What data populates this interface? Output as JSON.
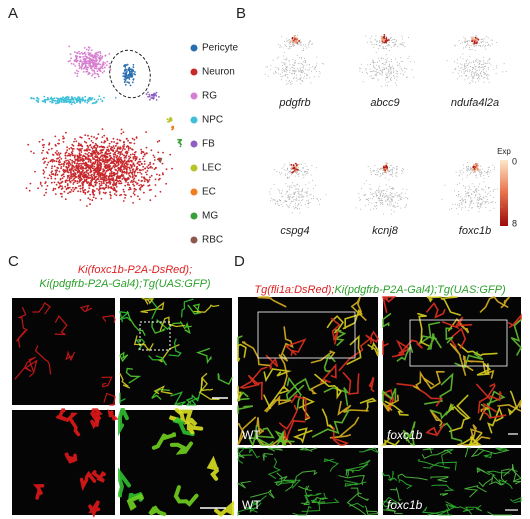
{
  "panels": {
    "A": {
      "label": "A",
      "legend": [
        {
          "name": "Pericyte",
          "color": "#2a6fb0"
        },
        {
          "name": "Neuron",
          "color": "#c8282c"
        },
        {
          "name": "RG",
          "color": "#d77fcf"
        },
        {
          "name": "NPC",
          "color": "#3fc0d8"
        },
        {
          "name": "FB",
          "color": "#8e5fc0"
        },
        {
          "name": "LEC",
          "color": "#b8c52a"
        },
        {
          "name": "EC",
          "color": "#f07d1e"
        },
        {
          "name": "MG",
          "color": "#3a9f3a"
        },
        {
          "name": "RBC",
          "color": "#8a5a4a"
        }
      ]
    },
    "B": {
      "label": "B",
      "genes": [
        "pdgfrb",
        "abcc9",
        "ndufa4l2a",
        "cspg4",
        "kcnj8",
        "foxc1b"
      ],
      "colorbar": {
        "title": "Exp",
        "min": 0,
        "max": 8
      }
    },
    "C": {
      "label": "C",
      "title_lines": [
        "Ki(foxc1b-P2A-DsRed);",
        "Ki(pdgfrb-P2A-Gal4);Tg(UAS:GFP)"
      ]
    },
    "D": {
      "label": "D",
      "title_parts": [
        "Tg(fli1a:DsRed);",
        "Ki(pdgfrb-P2A-Gal4);Tg(UAS:GFP)"
      ],
      "image_labels": [
        "WT",
        "foxc1b",
        "WT",
        "foxc1b"
      ]
    }
  }
}
